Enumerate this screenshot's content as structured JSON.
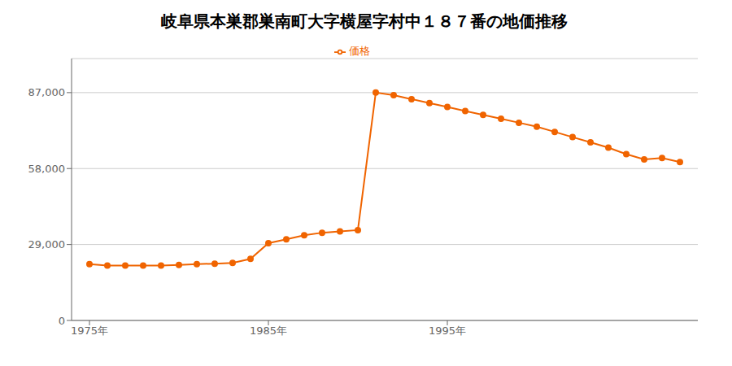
{
  "chart_data": {
    "type": "line",
    "title": "岐阜県本巣郡巣南町大字横屋字村中１８７番の地価推移",
    "x": [
      1975,
      1976,
      1977,
      1978,
      1979,
      1980,
      1981,
      1982,
      1983,
      1984,
      1985,
      1986,
      1987,
      1988,
      1989,
      1990,
      1991,
      1992,
      1993,
      1994,
      1995,
      1996,
      1997,
      1998,
      1999,
      2000,
      2001,
      2002,
      2003,
      2004,
      2005,
      2006,
      2007,
      2008
    ],
    "series": [
      {
        "name": "価格",
        "color": "#f06400",
        "marker": "circle",
        "values": [
          21500,
          21000,
          21000,
          21000,
          21000,
          21200,
          21500,
          21700,
          22000,
          23500,
          29500,
          31000,
          32500,
          33500,
          34000,
          34500,
          87000,
          86000,
          84500,
          83000,
          81500,
          80000,
          78500,
          77000,
          75500,
          74000,
          72000,
          70000,
          68000,
          66000,
          63500,
          61500,
          62000,
          60500
        ]
      }
    ],
    "xlim": [
      1974,
      2009
    ],
    "ylim": [
      0,
      100000
    ],
    "xticks": [
      {
        "value": 1975,
        "label": "1975年"
      },
      {
        "value": 1985,
        "label": "1985年"
      },
      {
        "value": 1995,
        "label": "1995年"
      }
    ],
    "yticks": [
      0,
      {
        "value": 29000,
        "label": "29,000"
      },
      {
        "value": 58000,
        "label": "58,000"
      },
      {
        "value": 87000,
        "label": "87,000"
      }
    ],
    "grid": true,
    "legend": "top"
  }
}
